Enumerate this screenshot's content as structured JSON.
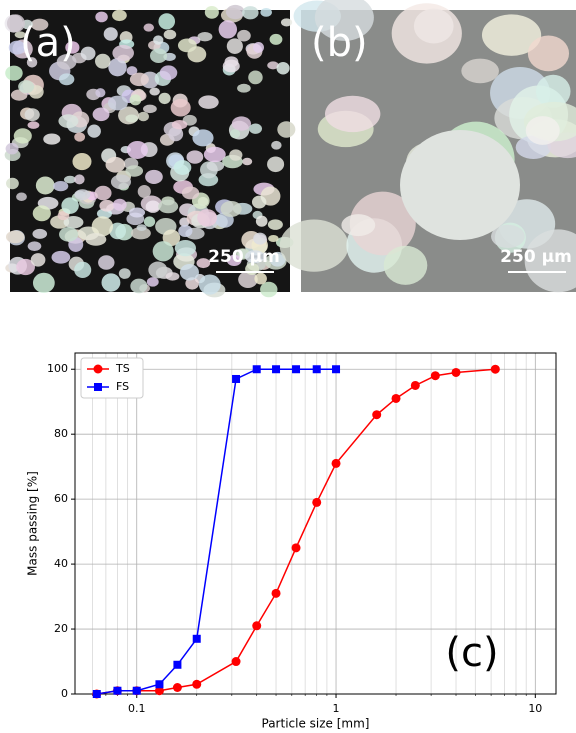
{
  "panels": [
    {
      "label": "(a)",
      "scale_bar": "250 µm"
    },
    {
      "label": "(b)",
      "scale_bar": "250 µm"
    }
  ],
  "chart_data": {
    "type": "line",
    "panel_label": "(c)",
    "x_label": "Particle size [mm]",
    "y_label": "Mass passing [%]",
    "xscale": "log",
    "xlim": [
      0.049,
      12.7
    ],
    "ylim": [
      0,
      105
    ],
    "xticks": [
      0.1,
      1,
      10
    ],
    "xminorticks": [
      0.06,
      0.07,
      0.08,
      0.09,
      0.2,
      0.3,
      0.4,
      0.5,
      0.6,
      0.7,
      0.8,
      0.9,
      2,
      3,
      4,
      5,
      6,
      7,
      8,
      9
    ],
    "yticks": [
      0,
      20,
      40,
      60,
      80,
      100
    ],
    "grid": true,
    "legend": "upper left",
    "series": [
      {
        "name": "TS",
        "color": "#ff0000",
        "marker": "circle",
        "x": [
          0.063,
          0.08,
          0.1,
          0.13,
          0.16,
          0.2,
          0.315,
          0.4,
          0.5,
          0.63,
          0.8,
          1.0,
          1.6,
          2.0,
          2.5,
          3.15,
          4.0,
          6.3
        ],
        "values": [
          0,
          1,
          1,
          1,
          2,
          3,
          10,
          21,
          31,
          45,
          59,
          71,
          86,
          91,
          95,
          98,
          99,
          100
        ]
      },
      {
        "name": "FS",
        "color": "#0000ff",
        "marker": "square",
        "x": [
          0.063,
          0.08,
          0.1,
          0.13,
          0.16,
          0.2,
          0.315,
          0.4,
          0.5,
          0.63,
          0.8,
          1.0
        ],
        "values": [
          0,
          1,
          1,
          3,
          9,
          17,
          97,
          100,
          100,
          100,
          100,
          100
        ]
      }
    ]
  }
}
